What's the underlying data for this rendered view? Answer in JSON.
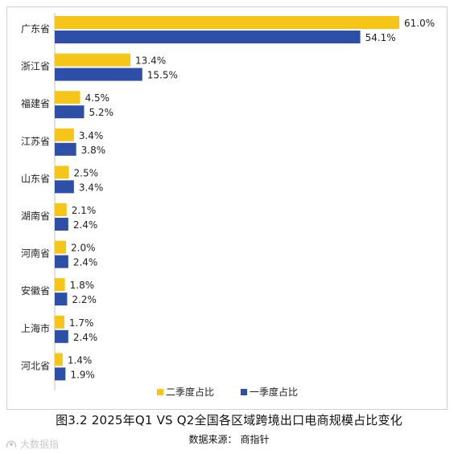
{
  "chart_data": {
    "type": "bar",
    "orientation": "horizontal",
    "categories": [
      "广东省",
      "浙江省",
      "福建省",
      "江苏省",
      "山东省",
      "湖南省",
      "河南省",
      "安徽省",
      "上海市",
      "河北省"
    ],
    "series": [
      {
        "name": "二季度占比",
        "color": "#F5C518",
        "values": [
          61.0,
          13.4,
          4.5,
          3.4,
          2.5,
          2.1,
          2.0,
          1.8,
          1.7,
          1.4
        ],
        "labels": [
          "61.0%",
          "13.4%",
          "4.5%",
          "3.4%",
          "2.5%",
          "2.1%",
          "2.0%",
          "1.8%",
          "1.7%",
          "1.4%"
        ]
      },
      {
        "name": "一季度占比",
        "color": "#2E4FA8",
        "values": [
          54.1,
          15.5,
          5.2,
          3.8,
          3.4,
          2.4,
          2.4,
          2.2,
          2.4,
          1.9
        ],
        "labels": [
          "54.1%",
          "15.5%",
          "5.2%",
          "3.8%",
          "3.4%",
          "2.4%",
          "2.4%",
          "2.2%",
          "2.4%",
          "1.9%"
        ]
      }
    ],
    "xlim": [
      0,
      61.0
    ],
    "grid": false,
    "legend": "bottom-center",
    "title": "图3.2    2025年Q1 VS Q2全国各区域跨境出口电商规模占比变化",
    "source_label": "数据来源：",
    "source_name": "商指针"
  },
  "watermark": "大数据指"
}
